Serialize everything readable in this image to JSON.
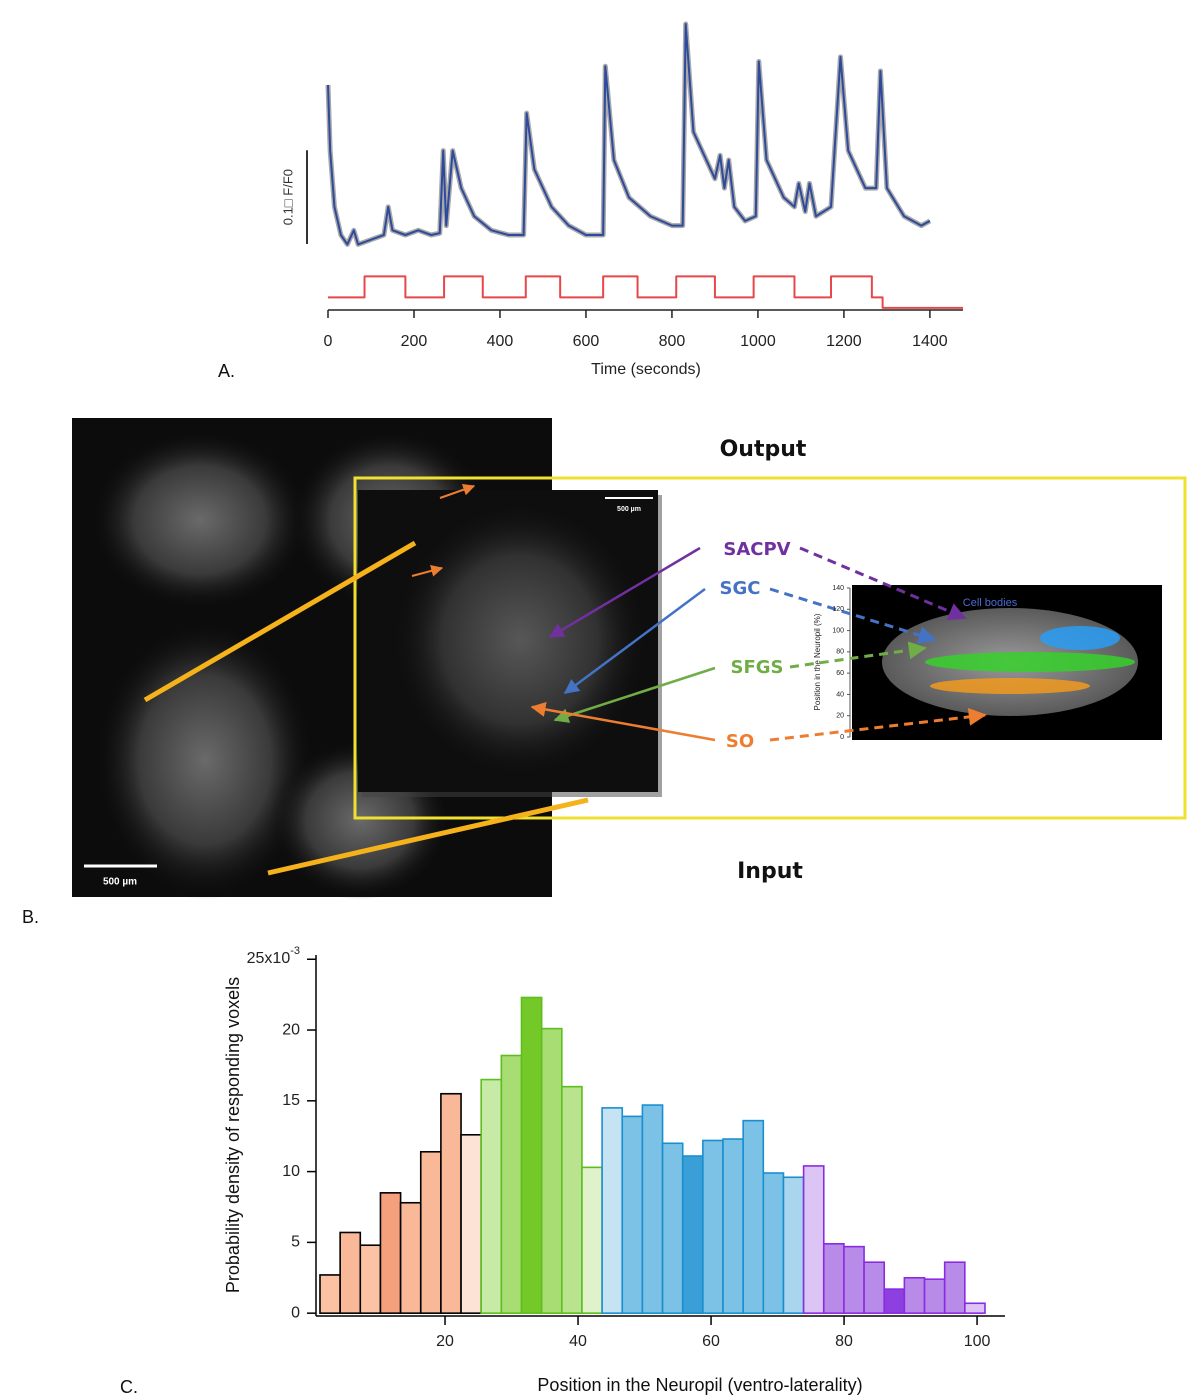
{
  "panel_labels": [
    "A.",
    "B.",
    "C."
  ],
  "chart_data": [
    {
      "type": "line",
      "xlabel": "Time (seconds)",
      "xlim": [
        0,
        1477
      ],
      "xticks": [
        0,
        200,
        400,
        600,
        800,
        1000,
        1200,
        1400
      ],
      "ylim": [
        -0.07,
        0.25
      ],
      "y2lim": [
        -0.6,
        13.7
      ],
      "scale_bar": {
        "value": 0.1,
        "label": "0.1□ F/F0"
      },
      "series": [
        {
          "color": "#2e4a9c",
          "band_color": "#a9a9a9",
          "x": [
            0,
            5,
            15,
            30,
            45,
            60,
            70,
            100,
            130,
            140,
            150,
            180,
            210,
            240,
            260,
            268,
            275,
            290,
            310,
            340,
            380,
            420,
            455,
            462,
            480,
            520,
            560,
            600,
            640,
            645,
            665,
            700,
            750,
            800,
            825,
            832,
            850,
            880,
            900,
            912,
            922,
            932,
            945,
            970,
            995,
            1002,
            1020,
            1060,
            1085,
            1095,
            1110,
            1120,
            1135,
            1170,
            1192,
            1210,
            1250,
            1275,
            1285,
            1300,
            1340,
            1380,
            1400
          ],
          "values": [
            0.17,
            0.1,
            0.04,
            0.01,
            0.0,
            0.015,
            0.0,
            0.005,
            0.01,
            0.04,
            0.015,
            0.01,
            0.015,
            0.01,
            0.012,
            0.1,
            0.02,
            0.1,
            0.06,
            0.03,
            0.015,
            0.01,
            0.01,
            0.14,
            0.08,
            0.04,
            0.02,
            0.01,
            0.01,
            0.19,
            0.09,
            0.05,
            0.03,
            0.02,
            0.02,
            0.235,
            0.12,
            0.09,
            0.07,
            0.095,
            0.06,
            0.09,
            0.04,
            0.025,
            0.03,
            0.195,
            0.09,
            0.05,
            0.04,
            0.065,
            0.035,
            0.065,
            0.03,
            0.04,
            0.2,
            0.1,
            0.06,
            0.06,
            0.185,
            0.06,
            0.03,
            0.02,
            0.025
          ]
        },
        {
          "color": "#e8474a",
          "axis": "y2",
          "x": [
            0,
            85,
            85,
            180,
            180,
            270,
            270,
            360,
            360,
            460,
            460,
            540,
            540,
            640,
            640,
            720,
            720,
            810,
            810,
            900,
            900,
            990,
            990,
            1085,
            1085,
            1170,
            1170,
            1265,
            1265,
            1290,
            1290,
            1477
          ],
          "values": [
            0,
            0,
            1,
            1,
            0,
            0,
            1,
            1,
            0,
            0,
            1,
            1,
            0,
            0,
            1,
            1,
            0,
            0,
            1,
            1,
            0,
            0,
            1,
            1,
            0,
            0,
            1,
            1,
            0,
            0,
            -0.5,
            -0.5
          ]
        }
      ]
    },
    {
      "type": "histogram",
      "xlabel": "Position in the Neuropil (ventro-laterality)",
      "ylabel": "Probability density of responding voxels",
      "xlim": [
        0.6,
        104.2
      ],
      "xticks": [
        20,
        40,
        60,
        80,
        100
      ],
      "ylim": [
        -0.2,
        25.3
      ],
      "yticks": [
        0,
        5,
        10,
        15,
        20,
        {
          "value": 25,
          "label": "25x10",
          "exponent": "-3"
        }
      ],
      "bins": [
        1.2,
        4.23,
        7.26,
        10.29,
        13.32,
        16.35,
        19.38,
        22.41,
        25.44,
        28.47,
        31.5,
        34.53,
        37.56,
        40.59,
        43.62,
        46.65,
        49.68,
        52.71,
        55.74,
        58.77,
        61.8,
        64.83,
        67.86,
        70.89,
        73.92,
        76.95,
        79.98,
        83.01,
        86.04,
        89.07,
        92.1,
        95.13,
        98.16,
        101.19
      ],
      "values": [
        2.7,
        5.7,
        4.8,
        8.5,
        7.8,
        11.4,
        15.5,
        12.6,
        16.5,
        18.2,
        22.3,
        20.1,
        16.0,
        10.3,
        14.5,
        13.9,
        14.7,
        12.0,
        11.1,
        12.2,
        12.3,
        13.6,
        9.9,
        9.6,
        10.4,
        4.9,
        4.7,
        3.6,
        1.7,
        2.5,
        2.4,
        3.6,
        0.7
      ],
      "colors": [
        "#fbc3a4",
        "#f9b898",
        "#fbc3a4",
        "#f5a07c",
        "#f9b898",
        "#f9b898",
        "#f9b898",
        "#fde3d6",
        "#c7eaa6",
        "#a8dd74",
        "#74c929",
        "#a8dd74",
        "#b9e38e",
        "#dff2cb",
        "#c5e3f3",
        "#7cc2e6",
        "#7cc2e6",
        "#7cc2e6",
        "#3a9fd6",
        "#7cc2e6",
        "#7cc2e6",
        "#7cc2e6",
        "#7cc2e6",
        "#a9d6ee",
        "#dcc4f5",
        "#b98be8",
        "#b98be8",
        "#b98be8",
        "#8e3fe0",
        "#b98be8",
        "#b98be8",
        "#b98be8",
        "#dcc4f5"
      ],
      "edgecolors": [
        "#000000",
        "#000000",
        "#000000",
        "#000000",
        "#000000",
        "#000000",
        "#000000",
        "#000000",
        "#5cbf1d",
        "#5cbf1d",
        "#5cbf1d",
        "#5cbf1d",
        "#5cbf1d",
        "#5cbf1d",
        "#1a8fcf",
        "#1a8fcf",
        "#1a8fcf",
        "#1a8fcf",
        "#1a8fcf",
        "#1a8fcf",
        "#1a8fcf",
        "#1a8fcf",
        "#1a8fcf",
        "#1a8fcf",
        "#8a2be2",
        "#8a2be2",
        "#8a2be2",
        "#8a2be2",
        "#8a2be2",
        "#8a2be2",
        "#8a2be2",
        "#8a2be2",
        "#8a2be2"
      ]
    }
  ],
  "figure_b": {
    "output_label": "Output",
    "input_label": "Input",
    "scale_bars": [
      "500 µm",
      "500 µm"
    ],
    "regions": [
      {
        "name": "SACPV",
        "color": "#7030a0"
      },
      {
        "name": "SGC",
        "color": "#4472c4"
      },
      {
        "name": "SFGS",
        "color": "#70ad47"
      },
      {
        "name": "SO",
        "color": "#ed7d31"
      }
    ],
    "inset": {
      "annotation": "Cell bodies",
      "ylabel": "Position in the Neuropil (%)",
      "yticks": [
        0,
        20,
        40,
        60,
        80,
        100,
        120,
        140
      ]
    }
  }
}
